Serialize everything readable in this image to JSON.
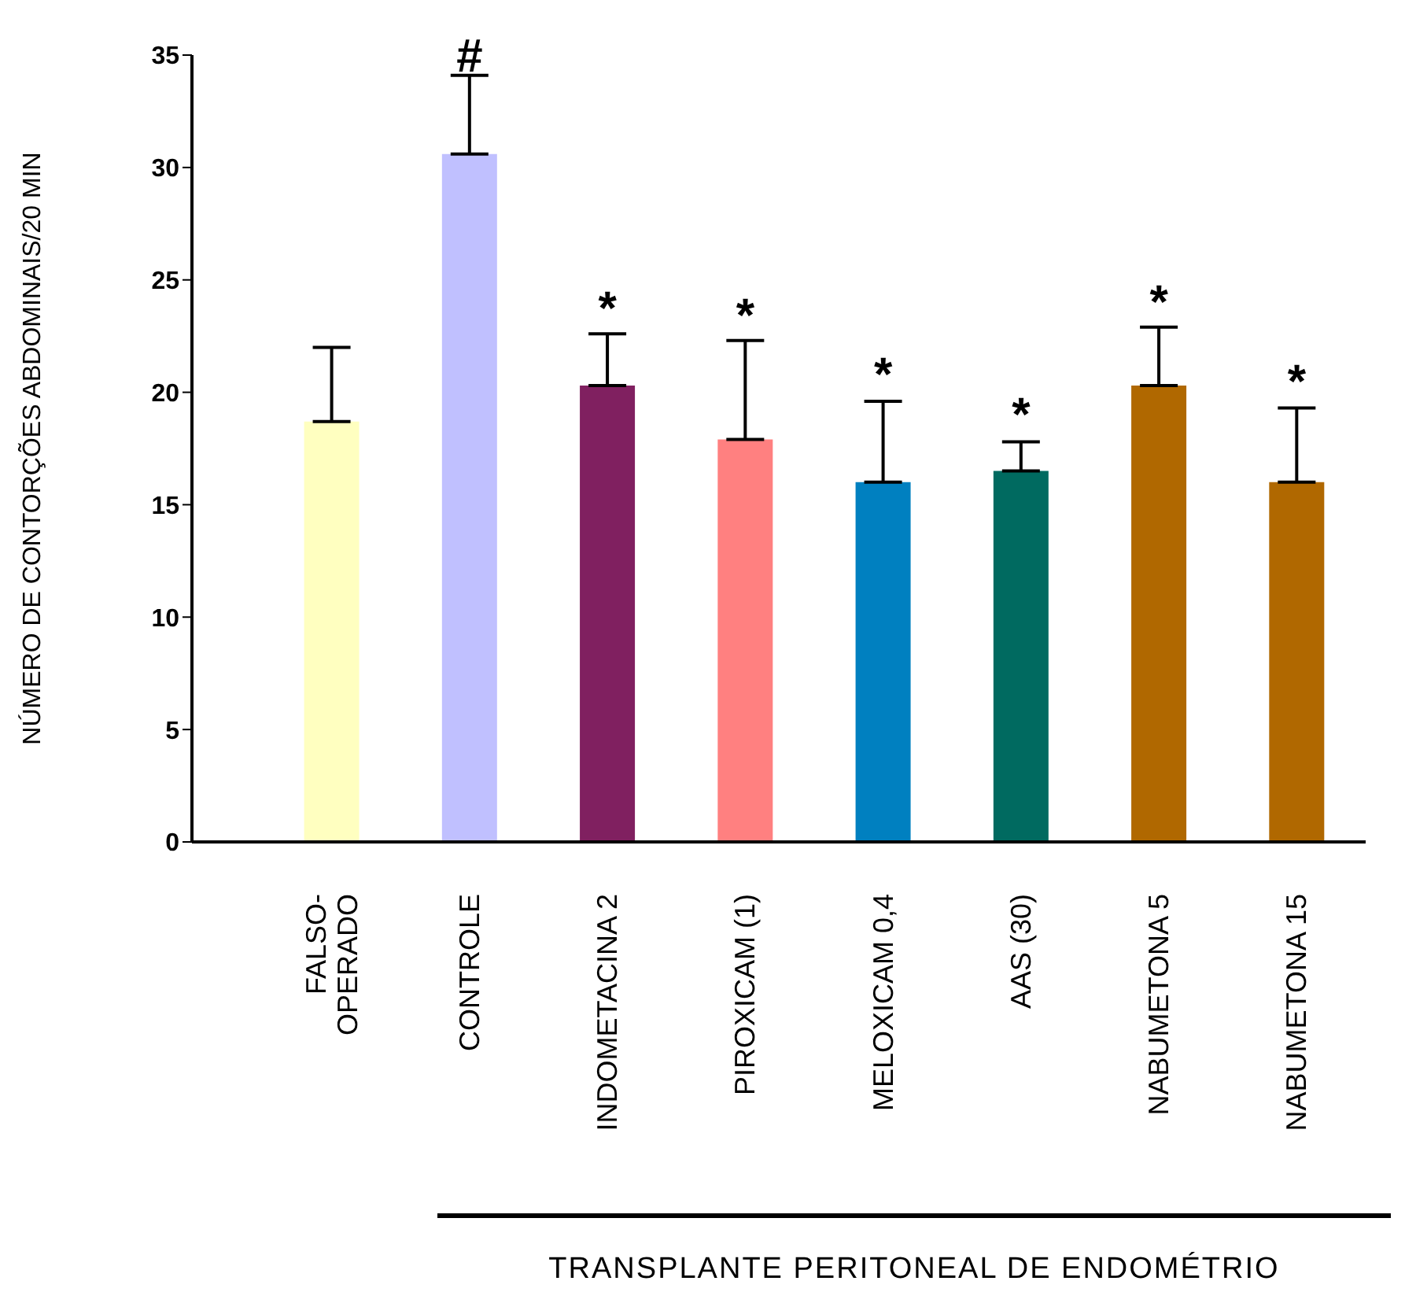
{
  "chart_data": {
    "type": "bar",
    "ylabel": "NÚMERO DE CONTORÇÕES ABDOMINAIS/20 MIN",
    "xlabel": "TRANSPLANTE PERITONEAL DE ENDOMÉTRIO",
    "categories": [
      "FALSO-OPERADO",
      "CONTROLE",
      "INDOMETACINA 2",
      "PIROXICAM (1)",
      "MELOXICAM 0,4",
      "AAS (30)",
      "NABUMETONA 5",
      "NABUMETONA 15"
    ],
    "values": [
      18.7,
      30.6,
      20.3,
      17.9,
      16.0,
      16.5,
      20.3,
      16.0
    ],
    "colors": [
      "#ffffc0",
      "#c0c0ff",
      "#802060",
      "#ff8080",
      "#0080c0",
      "#006a60",
      "#b06800",
      "#b06800"
    ],
    "errors": [
      [
        18.7,
        22.0
      ],
      [
        30.6,
        34.1
      ],
      [
        20.3,
        22.6
      ],
      [
        17.9,
        22.3
      ],
      [
        16.0,
        19.6
      ],
      [
        16.5,
        17.8
      ],
      [
        20.3,
        22.9
      ],
      [
        16.0,
        19.3
      ]
    ],
    "ylim": [
      0,
      35
    ],
    "yticks": [
      0,
      5,
      10,
      15,
      20,
      25,
      30,
      35
    ],
    "grid": false,
    "legend": false,
    "annotations": [
      {
        "text": "#",
        "x": "CONTROLE",
        "y": 34.1
      },
      {
        "text": "*",
        "x": "INDOMETACINA 2",
        "y": 22.6
      },
      {
        "text": "*",
        "x": "PIROXICAM (1)",
        "y": 22.3
      },
      {
        "text": "*",
        "x": "MELOXICAM 0,4",
        "y": 19.6
      },
      {
        "text": "*",
        "x": "AAS (30)",
        "y": 17.8
      },
      {
        "text": "*",
        "x": "NABUMETONA 5",
        "y": 22.9
      },
      {
        "text": "*",
        "x": "NABUMETONA 15",
        "y": 19.3
      }
    ]
  }
}
